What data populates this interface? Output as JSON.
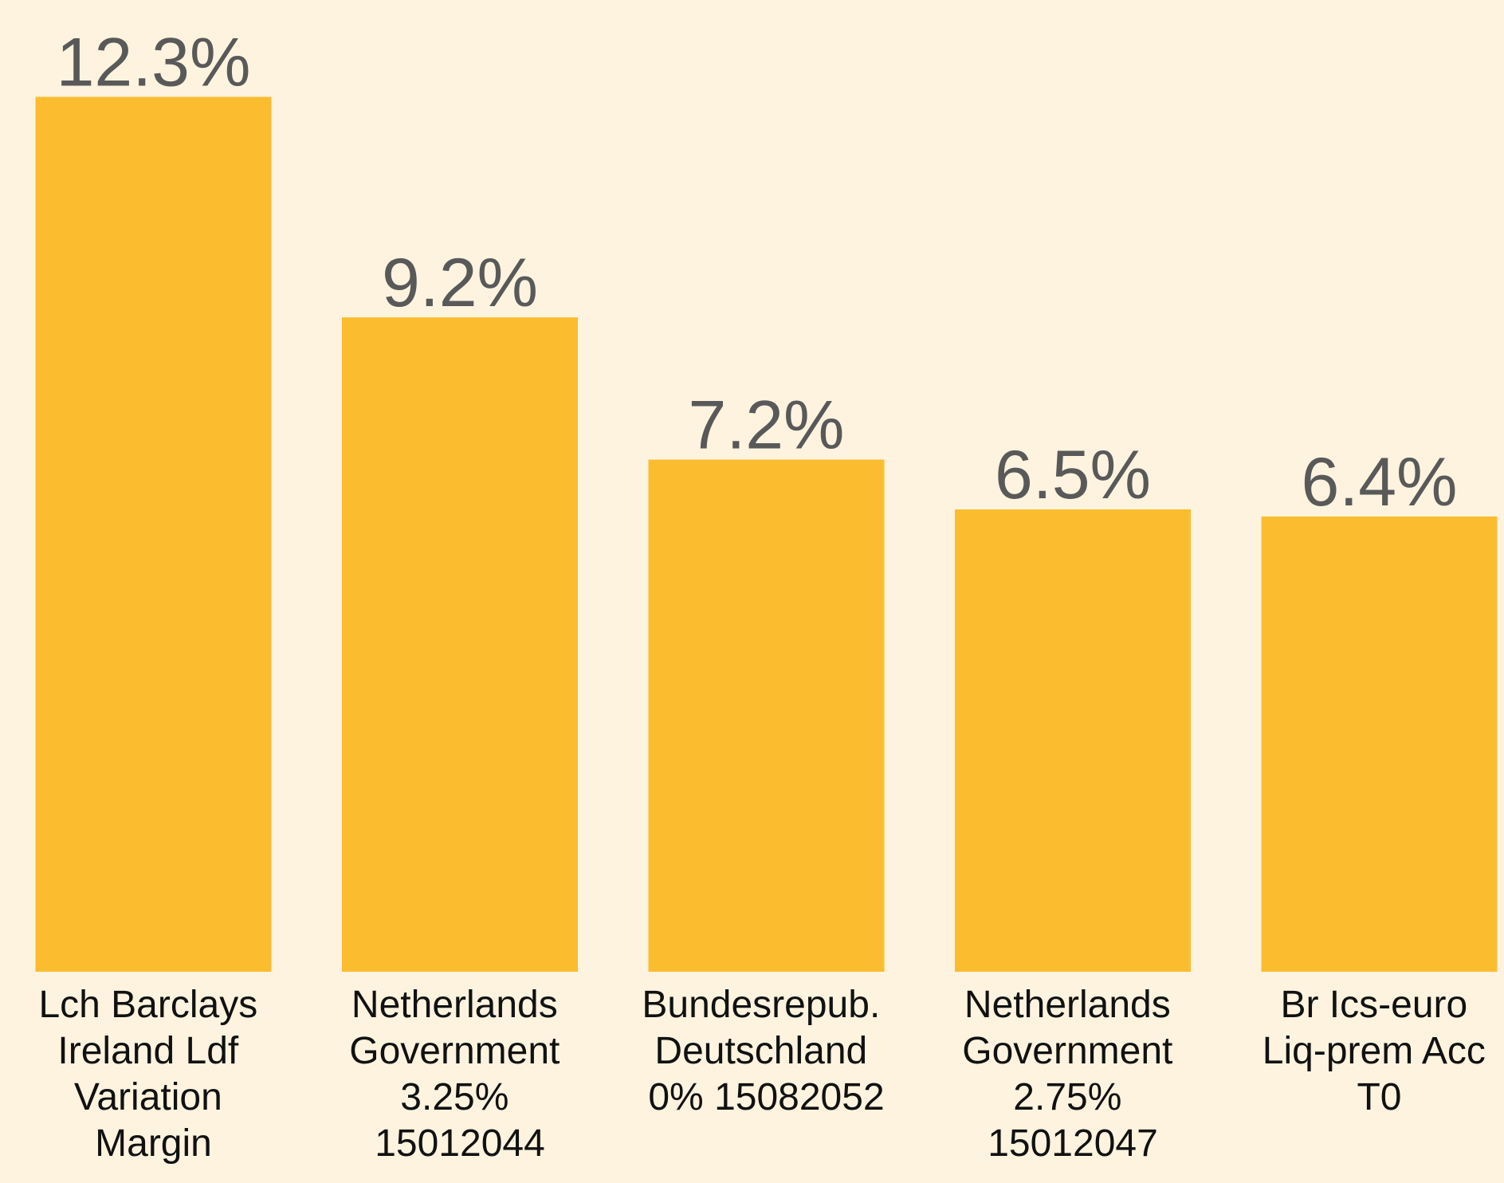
{
  "chart_data": {
    "type": "bar",
    "categories": [
      "Lch Barclays Ireland Ldf Variation Margin",
      "Netherlands Government 3.25% 15012044",
      "Bundesrepub. Deutschland 0% 15082052",
      "Netherlands Government 2.75% 15012047",
      "Br Ics-euro Liq-prem Acc T0"
    ],
    "values": [
      12.3,
      9.2,
      7.2,
      6.5,
      6.4
    ],
    "value_labels": [
      "12.3%",
      "9.2%",
      "7.2%",
      "6.5%",
      "6.4%"
    ],
    "color": "#fbbc2f"
  }
}
